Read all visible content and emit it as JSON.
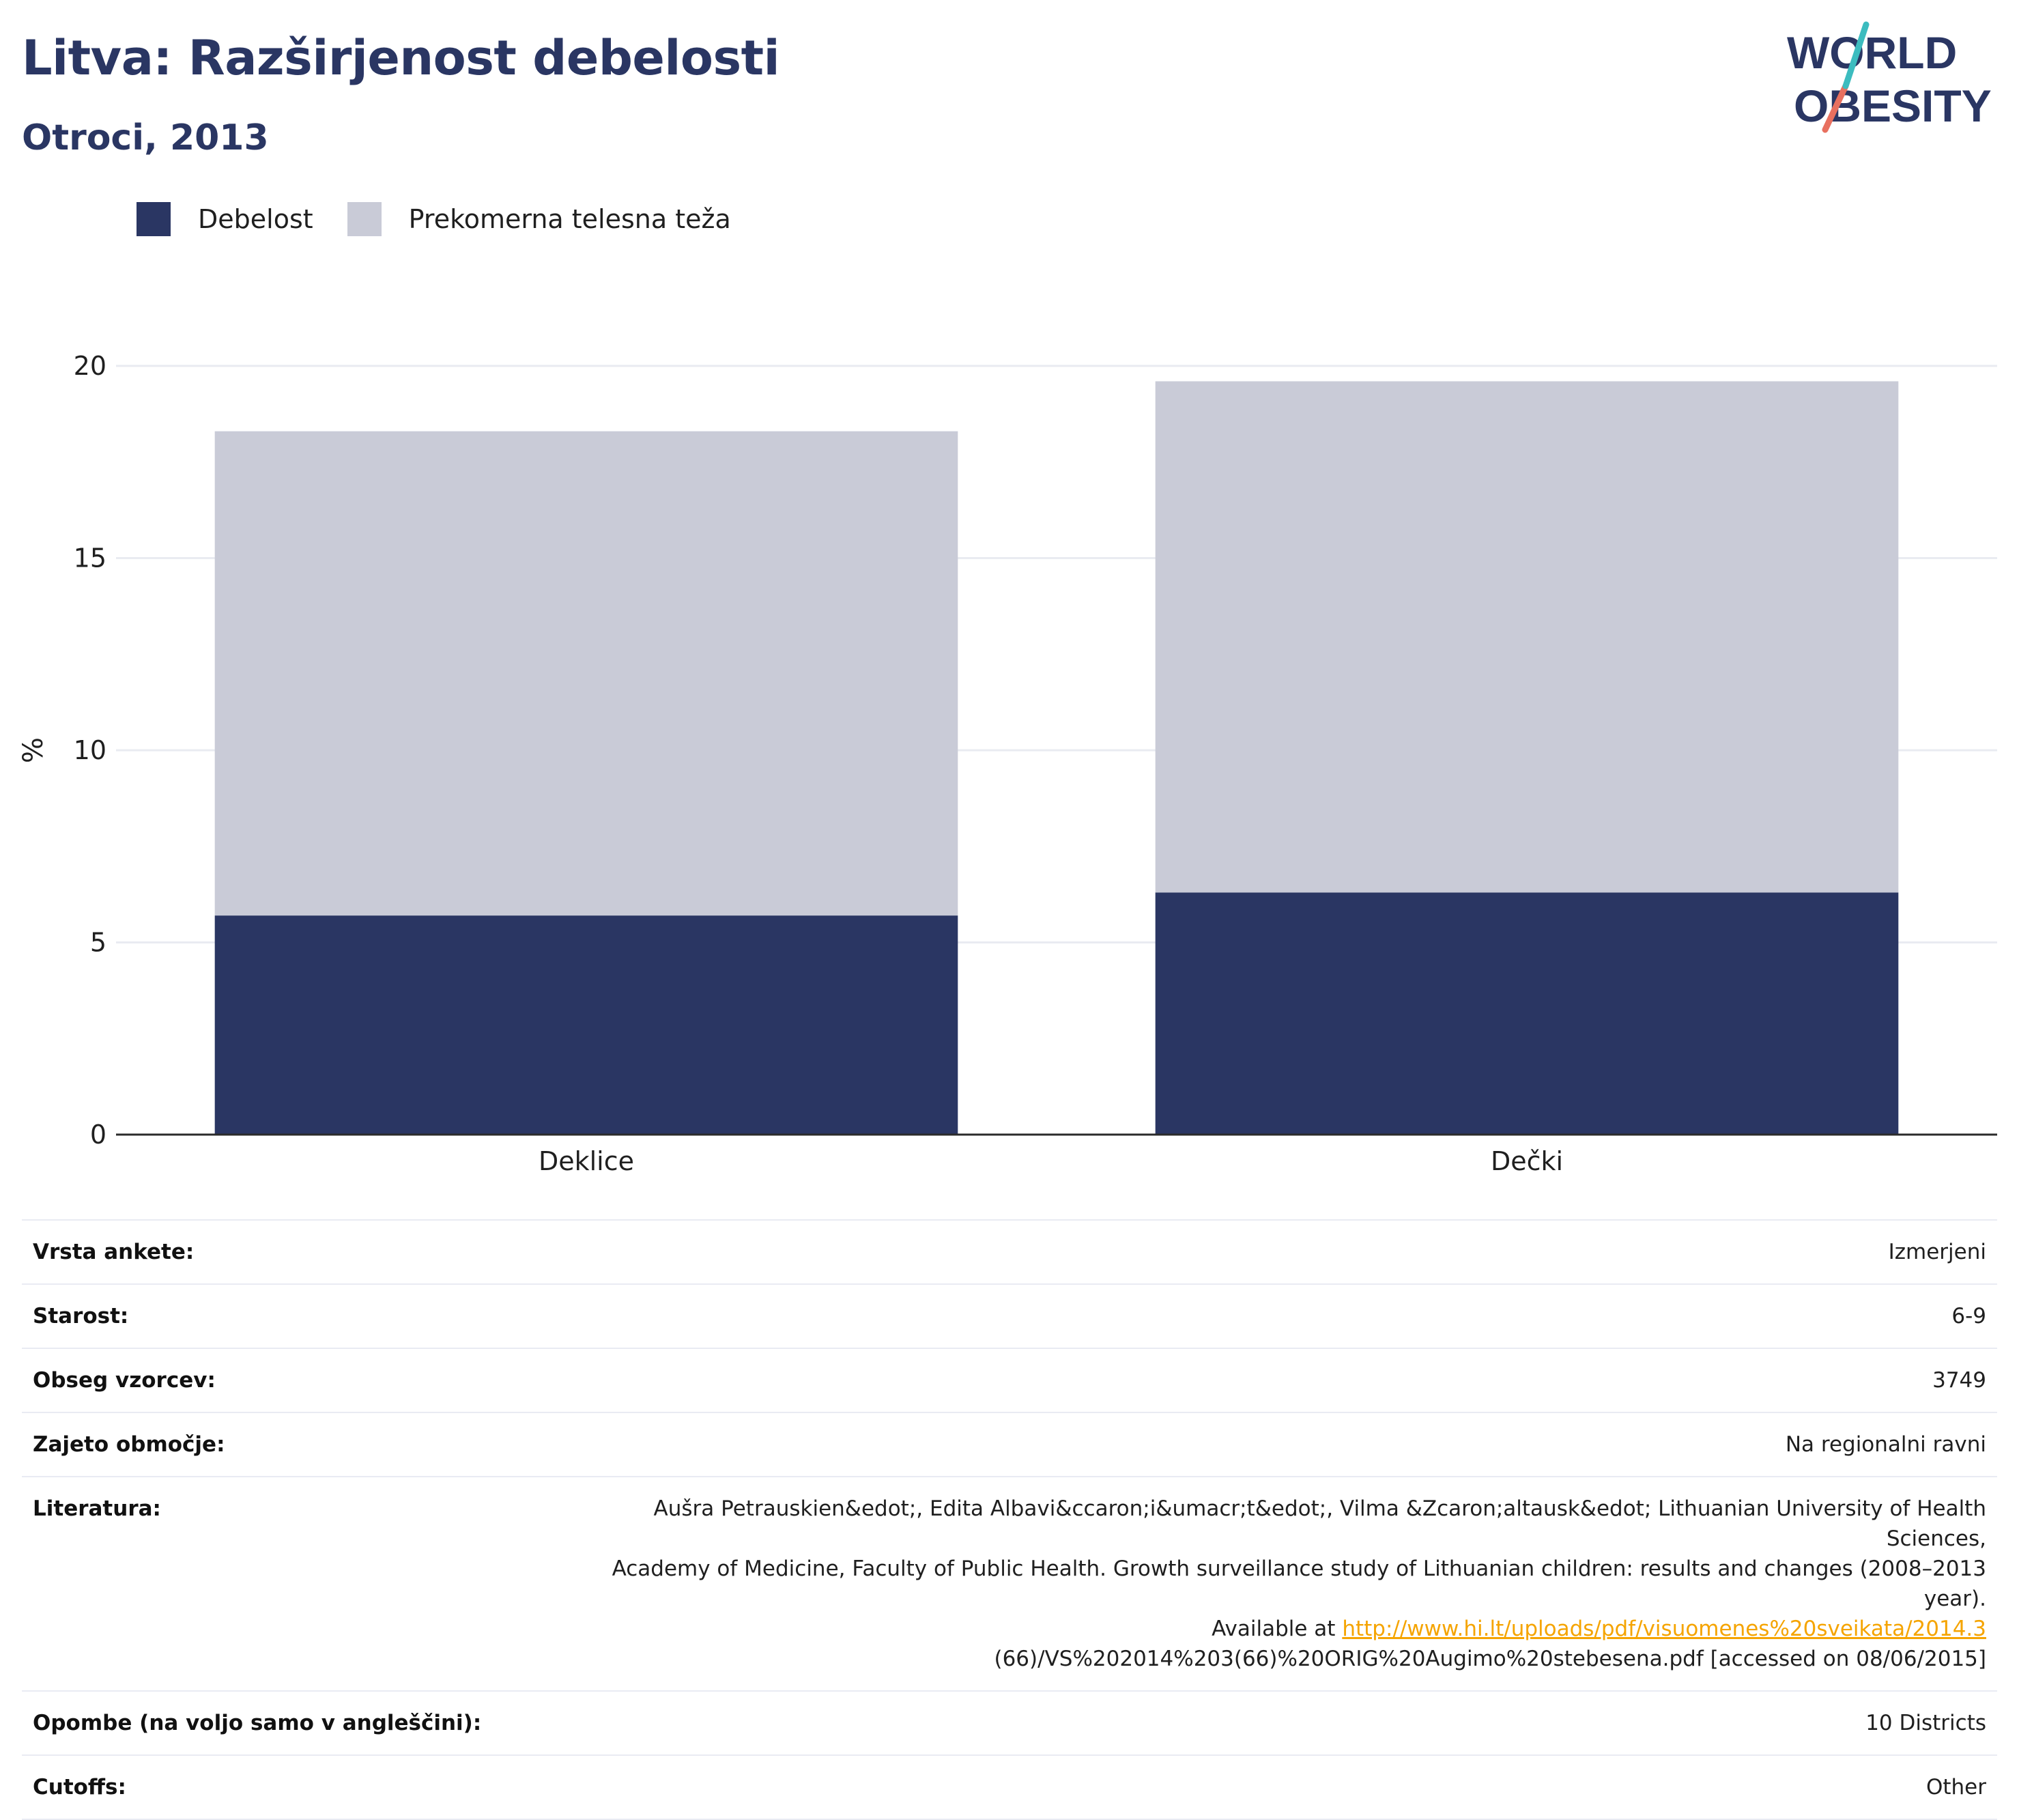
{
  "header": {
    "title": "Litva: Razširjenost debelosti",
    "subtitle": "Otroci, 2013"
  },
  "logo": {
    "line1": "WORLD",
    "line2": "OBESITY"
  },
  "legend": {
    "items": [
      {
        "label": "Debelost",
        "color": "#2a3663"
      },
      {
        "label": "Prekomerna telesna teža",
        "color": "#c9cbd7"
      }
    ]
  },
  "chart_data": {
    "type": "bar",
    "stacked": true,
    "categories": [
      "Deklice",
      "Dečki"
    ],
    "series": [
      {
        "name": "Debelost",
        "values": [
          5.7,
          6.3
        ],
        "color": "#2a3663"
      },
      {
        "name": "Prekomerna telesna teža",
        "values": [
          12.6,
          13.3
        ],
        "color": "#c9cbd7"
      }
    ],
    "ylabel": "%",
    "ylim": [
      0,
      20
    ],
    "yticks": [
      0,
      5,
      10,
      15,
      20
    ],
    "grid": true,
    "legend_position": "top-left"
  },
  "info": {
    "survey_type": {
      "label": "Vrsta ankete:",
      "value": "Izmerjeni"
    },
    "age": {
      "label": "Starost:",
      "value": "6-9"
    },
    "sample_size": {
      "label": "Obseg vzorcev:",
      "value": "3749"
    },
    "area": {
      "label": "Zajeto območje:",
      "value": "Na regionalni ravni"
    },
    "literature": {
      "label": "Literatura:",
      "line1": "Aušra Petrauskien&edot;, Edita Albavi&ccaron;i&umacr;t&edot;, Vilma &Zcaron;altausk&edot; Lithuanian University of Health Sciences,",
      "line2": "Academy of Medicine, Faculty of Public Health. Growth surveillance study of Lithuanian children: results and changes (2008–2013 year).",
      "line3_prefix": "Available at ",
      "link": "http://www.hi.lt/uploads/pdf/visuomenes%20sveikata/2014.3",
      "line4": "(66)/VS%202014%203(66)%20ORIG%20Augimo%20stebesena.pdf [accessed on 08/06/2015]"
    },
    "notes": {
      "label": "Opombe (na voljo samo v angleščini):",
      "value": "10 Districts"
    },
    "cutoffs": {
      "label": "Cutoffs:",
      "value": "Other"
    }
  }
}
